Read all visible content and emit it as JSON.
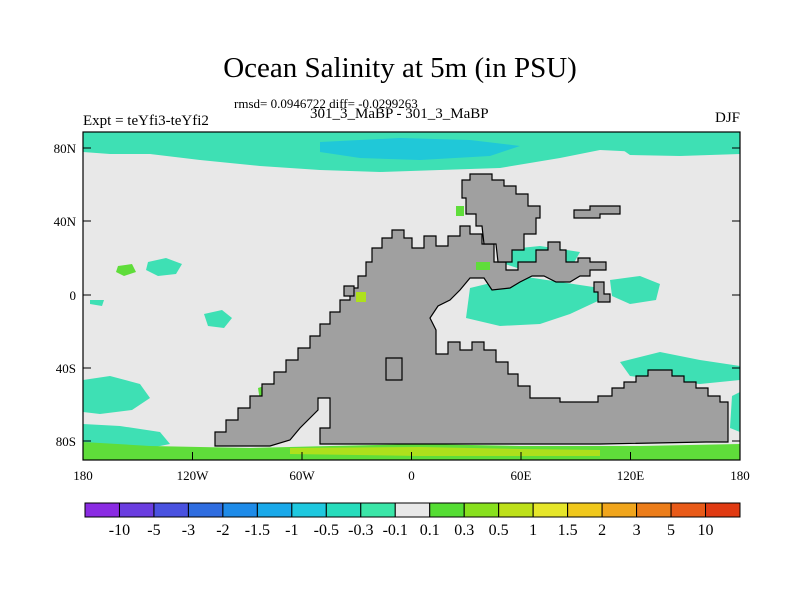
{
  "title": "Ocean Salinity at 5m (in PSU)",
  "stats": "rmsd= 0.0946722 diff= -0.0299263",
  "subtitle": "301_3_MaBP - 301_3_MaBP",
  "expt": "Expt = teYfi3-teYfi2",
  "season": "DJF",
  "lat_labels": [
    "80N",
    "40N",
    "0",
    "40S",
    "80S"
  ],
  "lon_labels": [
    "180",
    "120W",
    "60W",
    "0",
    "60E",
    "120E",
    "180"
  ],
  "colorbar": {
    "labels": [
      "-10",
      "-5",
      "-3",
      "-2",
      "-1.5",
      "-1",
      "-0.5",
      "-0.3",
      "-0.1",
      "0.1",
      "0.3",
      "0.5",
      "1",
      "1.5",
      "2",
      "3",
      "5",
      "10"
    ],
    "colors": [
      "#8a2be2",
      "#6a3de0",
      "#4a52e0",
      "#2f6de0",
      "#1e8be8",
      "#19a9ea",
      "#1ec8df",
      "#27dcbc",
      "#3be6a8",
      "#e8e8e8",
      "#55dd33",
      "#88e01e",
      "#bde01a",
      "#e6e62a",
      "#f0c81c",
      "#f0a51c",
      "#ec7d1a",
      "#e85a18",
      "#e03a12"
    ]
  },
  "map_colors": {
    "ocean": "#e8e8e8",
    "land": "#a0a0a0",
    "neg_small": "#3ee0b4",
    "neg_medium": "#20c8d8",
    "neg_large": "#1aa8e4",
    "pos_small": "#5fdd3a",
    "pos_medium": "#aee01c"
  }
}
